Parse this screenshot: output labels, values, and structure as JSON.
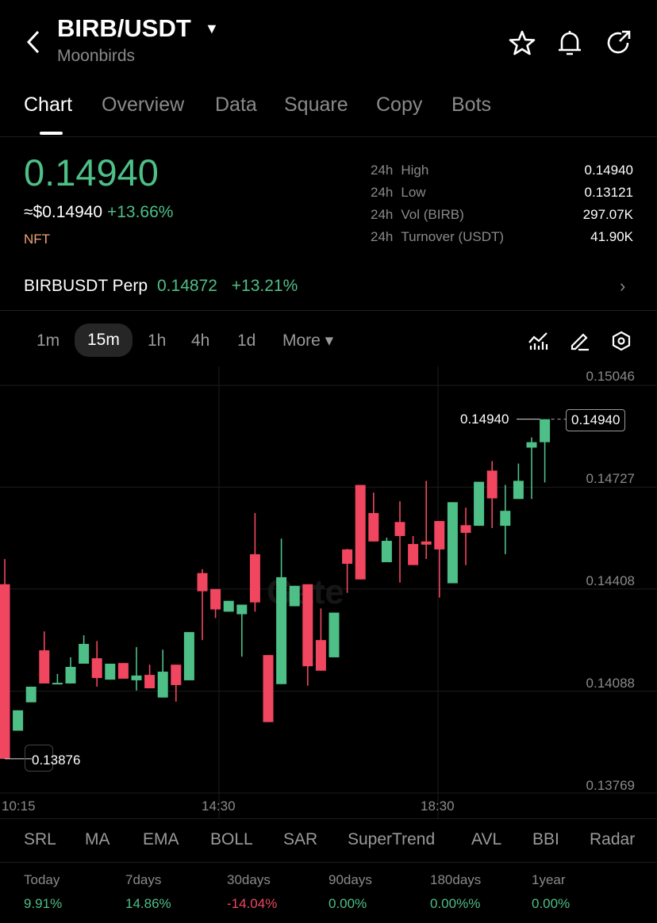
{
  "header": {
    "title": "BIRB/USDT",
    "subtitle": "Moonbirds"
  },
  "tabs": [
    {
      "label": "Chart"
    },
    {
      "label": "Overview"
    },
    {
      "label": "Data"
    },
    {
      "label": "Square"
    },
    {
      "label": "Copy"
    },
    {
      "label": "Bots"
    }
  ],
  "ticker": {
    "price": "0.14940",
    "usd": "≈$0.14940",
    "change": "+13.66%",
    "tag": "NFT"
  },
  "stats": [
    {
      "period": "24h",
      "label": "High",
      "value": "0.14940"
    },
    {
      "period": "24h",
      "label": "Low",
      "value": "0.13121"
    },
    {
      "period": "24h",
      "label": "Vol (BIRB)",
      "value": "297.07K"
    },
    {
      "period": "24h",
      "label": "Turnover (USDT)",
      "value": "41.90K"
    }
  ],
  "perp": {
    "name": "BIRBUSDT Perp",
    "price": "0.14872",
    "change": "+13.21%"
  },
  "intervals": [
    {
      "label": "1m"
    },
    {
      "label": "15m",
      "active": true
    },
    {
      "label": "1h"
    },
    {
      "label": "4h"
    },
    {
      "label": "1d"
    },
    {
      "label": "More ▾"
    }
  ],
  "watermark": "Gate",
  "colors": {
    "up": "#4dbf87",
    "down": "#f0465f",
    "nft": "#f0a27a"
  },
  "chart_data": {
    "type": "candlestick",
    "interval": "15m",
    "y_ticks": [
      "0.15046",
      "0.14727",
      "0.14408",
      "0.14088",
      "0.13769"
    ],
    "ylim": [
      0.13769,
      0.15046
    ],
    "x_ticks": [
      "10:15",
      "14:30",
      "18:30"
    ],
    "last_price": "0.14940",
    "high_marker": "0.14940",
    "low_marker": "0.13876",
    "grid": true,
    "ohlc": [
      [
        0.14423,
        0.14502,
        0.13876,
        0.13876
      ],
      [
        0.13964,
        0.14028,
        0.13964,
        0.14028
      ],
      [
        0.14053,
        0.14102,
        0.14053,
        0.14102
      ],
      [
        0.14216,
        0.14275,
        0.14112,
        0.14112
      ],
      [
        0.1411,
        0.14142,
        0.1411,
        0.14114
      ],
      [
        0.14112,
        0.14194,
        0.14112,
        0.14164
      ],
      [
        0.14174,
        0.14263,
        0.14174,
        0.14236
      ],
      [
        0.14191,
        0.14245,
        0.14102,
        0.14129
      ],
      [
        0.14124,
        0.14174,
        0.14124,
        0.14174
      ],
      [
        0.14176,
        0.14176,
        0.14127,
        0.14127
      ],
      [
        0.14122,
        0.14226,
        0.1409,
        0.14137
      ],
      [
        0.14139,
        0.14171,
        0.14097,
        0.14097
      ],
      [
        0.14068,
        0.14218,
        0.14068,
        0.14149
      ],
      [
        0.14171,
        0.14171,
        0.14055,
        0.14107
      ],
      [
        0.14122,
        0.14273,
        0.14122,
        0.14273
      ],
      [
        0.14458,
        0.1447,
        0.14248,
        0.14401
      ],
      [
        0.14408,
        0.14408,
        0.14317,
        0.14344
      ],
      [
        0.14337,
        0.14371,
        0.14337,
        0.14371
      ],
      [
        0.14329,
        0.14359,
        0.14196,
        0.14359
      ],
      [
        0.14517,
        0.14646,
        0.14337,
        0.14366
      ],
      [
        0.14201,
        0.14201,
        0.13991,
        0.13991
      ],
      [
        0.1411,
        0.14566,
        0.1411,
        0.14445
      ],
      [
        0.14354,
        0.14418,
        0.14354,
        0.14418
      ],
      [
        0.14423,
        0.14423,
        0.14105,
        0.14166
      ],
      [
        0.14248,
        0.14347,
        0.14152,
        0.14152
      ],
      [
        0.14194,
        0.14334,
        0.14194,
        0.14334
      ],
      [
        0.14532,
        0.14534,
        0.14396,
        0.14487
      ],
      [
        0.14734,
        0.14734,
        0.14438,
        0.14438
      ],
      [
        0.14646,
        0.1471,
        0.14557,
        0.14557
      ],
      [
        0.14492,
        0.14569,
        0.14492,
        0.14559
      ],
      [
        0.14618,
        0.14683,
        0.14428,
        0.14574
      ],
      [
        0.14549,
        0.14574,
        0.14483,
        0.14483
      ],
      [
        0.14557,
        0.14747,
        0.14502,
        0.14547
      ],
      [
        0.14621,
        0.14621,
        0.14381,
        0.14532
      ],
      [
        0.14426,
        0.1468,
        0.14426,
        0.1468
      ],
      [
        0.14608,
        0.14663,
        0.14483,
        0.14584
      ],
      [
        0.14606,
        0.14744,
        0.14606,
        0.14744
      ],
      [
        0.14779,
        0.14809,
        0.14599,
        0.14692
      ],
      [
        0.14606,
        0.14734,
        0.14517,
        0.14653
      ],
      [
        0.1469,
        0.14801,
        0.1469,
        0.14747
      ],
      [
        0.14851,
        0.14883,
        0.1469,
        0.14868
      ],
      [
        0.14868,
        0.1494,
        0.14742,
        0.1494
      ]
    ]
  },
  "indicators": [
    {
      "label": "SRL"
    },
    {
      "label": "MA"
    },
    {
      "label": "EMA"
    },
    {
      "label": "BOLL"
    },
    {
      "label": "SAR"
    },
    {
      "label": "SuperTrend"
    },
    {
      "label": "AVL"
    },
    {
      "label": "BBI"
    },
    {
      "label": "Radar"
    }
  ],
  "returns": [
    {
      "label": "Today",
      "value": "9.91%",
      "dir": "up"
    },
    {
      "label": "7days",
      "value": "14.86%",
      "dir": "up"
    },
    {
      "label": "30days",
      "value": "-14.04%",
      "dir": "down"
    },
    {
      "label": "90days",
      "value": "0.00%",
      "dir": "up"
    },
    {
      "label": "180days",
      "value": "0.00%%",
      "dir": "up"
    },
    {
      "label": "1year",
      "value": "0.00%",
      "dir": "up"
    }
  ]
}
